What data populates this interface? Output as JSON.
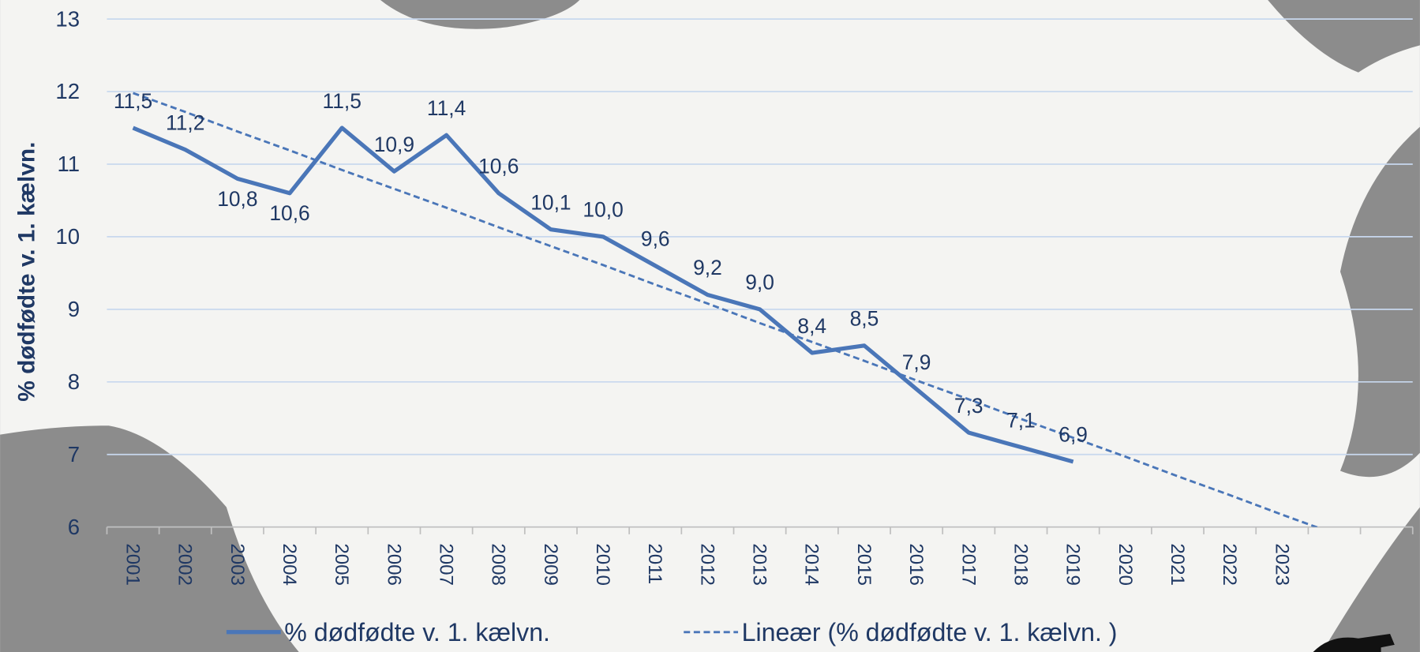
{
  "chart_data": {
    "type": "line",
    "y_label": "% dødfødte v. 1. kælvn.",
    "categories": [
      "2001",
      "2002",
      "2003",
      "2004",
      "2005",
      "2006",
      "2007",
      "2008",
      "2009",
      "2010",
      "2011",
      "2012",
      "2013",
      "2014",
      "2015",
      "2016",
      "2017",
      "2018",
      "2019",
      "2020",
      "2021",
      "2022",
      "2023",
      null,
      null
    ],
    "series": [
      {
        "name": "% dødfødte v. 1. kælvn.",
        "color": "#4a76b8",
        "style": "solid",
        "values": [
          11.5,
          11.2,
          10.8,
          10.6,
          11.5,
          10.9,
          11.4,
          10.6,
          10.1,
          10.0,
          9.6,
          9.2,
          9.0,
          8.4,
          8.5,
          7.9,
          7.3,
          7.1,
          6.9,
          null,
          null,
          null,
          null,
          null,
          null
        ],
        "value_labels": [
          "11,5",
          "11,2",
          "10,8",
          "10,6",
          "11,5",
          "10,9",
          "11,4",
          "10,6",
          "10,1",
          "10,0",
          "9,6",
          "9,2",
          "9,0",
          "8,4",
          "8,5",
          "7,9",
          "7,3",
          "7,1",
          "6,9",
          null,
          null,
          null,
          null,
          null,
          null
        ]
      },
      {
        "name": "Lineær (% dødfødte v. 1. kælvn. )",
        "color": "#4a76b8",
        "style": "dashed",
        "values": [
          11.98,
          11.72,
          11.45,
          11.19,
          10.92,
          10.66,
          10.4,
          10.13,
          9.87,
          9.61,
          9.34,
          9.08,
          8.81,
          8.55,
          8.29,
          8.02,
          7.76,
          7.49,
          7.23,
          6.97,
          6.7,
          6.44,
          6.17,
          5.91,
          null
        ]
      }
    ],
    "ylim": [
      6,
      13
    ],
    "yticks": [
      6,
      7,
      8,
      9,
      10,
      11,
      12,
      13
    ],
    "grid": true
  }
}
